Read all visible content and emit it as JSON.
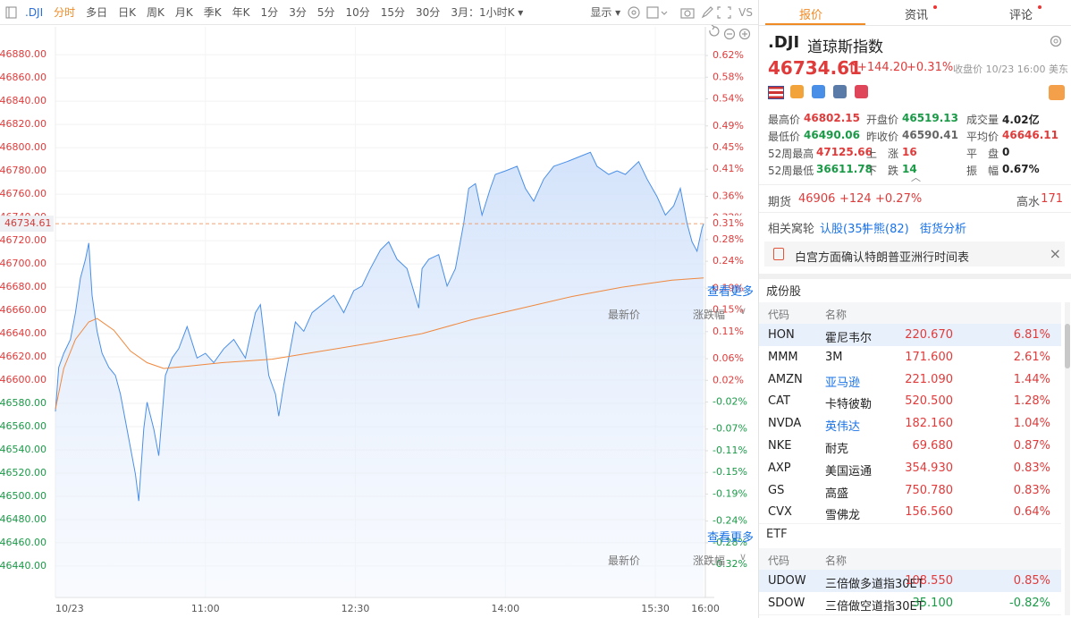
{
  "toolbar": {
    "symbol": ".DJI",
    "periods": [
      "分时",
      "多日",
      "日K",
      "周K",
      "月K",
      "季K",
      "年K",
      "1分",
      "3分",
      "5分",
      "10分",
      "15分",
      "30分"
    ],
    "range": "3月：1小时K",
    "display": "显示",
    "compare": "VS"
  },
  "chart_data": {
    "type": "line",
    "xlim": [
      "09:30",
      "16:00"
    ],
    "xticks": [
      {
        "value": "09:30",
        "label": "10/23"
      },
      "11:00",
      "12:30",
      "14:00",
      "15:30",
      "16:00"
    ],
    "ylim": [
      46413,
      46904
    ],
    "yticks": [
      {
        "value": 46880,
        "label": "46880.00"
      },
      {
        "value": 46860,
        "label": "46860.00"
      },
      {
        "value": 46840,
        "label": "46840.00"
      },
      {
        "value": 46820,
        "label": "46820.00"
      },
      {
        "value": 46800,
        "label": "46800.00"
      },
      {
        "value": 46780,
        "label": "46780.00"
      },
      {
        "value": 46760,
        "label": "46760.00"
      },
      {
        "value": 46740,
        "label": "46740.00"
      },
      {
        "value": 46720,
        "label": "46720.00"
      },
      {
        "value": 46700,
        "label": "46700.00"
      },
      {
        "value": 46680,
        "label": "46680.00"
      },
      {
        "value": 46660,
        "label": "46660.00"
      },
      {
        "value": 46640,
        "label": "46640.00"
      },
      {
        "value": 46620,
        "label": "46620.00"
      },
      {
        "value": 46600,
        "label": "46600.00"
      },
      {
        "value": 46580,
        "label": "46580.00"
      },
      {
        "value": 46560,
        "label": "46560.00"
      },
      {
        "value": 46540,
        "label": "46540.00"
      },
      {
        "value": 46520,
        "label": "46520.00"
      },
      {
        "value": 46500,
        "label": "46500.00"
      },
      {
        "value": 46480,
        "label": "46480.00"
      },
      {
        "value": 46460,
        "label": "46460.00"
      },
      {
        "value": 46440,
        "label": "46440.00"
      }
    ],
    "y2lim": [
      -0.381,
      0.673
    ],
    "y2ticks": [
      {
        "value": 0.62,
        "label": "0.62%"
      },
      {
        "value": 0.58,
        "label": "0.58%"
      },
      {
        "value": 0.54,
        "label": "0.54%"
      },
      {
        "value": 0.49,
        "label": "0.49%"
      },
      {
        "value": 0.45,
        "label": "0.45%"
      },
      {
        "value": 0.41,
        "label": "0.41%"
      },
      {
        "value": 0.36,
        "label": "0.36%"
      },
      {
        "value": 0.32,
        "label": "0.32%"
      },
      {
        "value": 0.28,
        "label": "0.28%"
      },
      {
        "value": 0.24,
        "label": "0.24%"
      },
      {
        "value": 0.19,
        "label": "0.19%"
      },
      {
        "value": 0.15,
        "label": "0.15%"
      },
      {
        "value": 0.11,
        "label": "0.11%"
      },
      {
        "value": 0.06,
        "label": "0.06%"
      },
      {
        "value": 0.02,
        "label": "0.02%"
      },
      {
        "value": -0.02,
        "label": "-0.02%"
      },
      {
        "value": -0.07,
        "label": "-0.07%"
      },
      {
        "value": -0.11,
        "label": "-0.11%"
      },
      {
        "value": -0.15,
        "label": "-0.15%"
      },
      {
        "value": -0.19,
        "label": "-0.19%"
      },
      {
        "value": -0.24,
        "label": "-0.24%"
      },
      {
        "value": -0.28,
        "label": "-0.28%"
      },
      {
        "value": -0.32,
        "label": "-0.32%"
      }
    ],
    "price_line": {
      "value": 46734.61,
      "pct_label": "0.31%"
    },
    "series": [
      {
        "color": "#4a8fe7",
        "fill": true,
        "x": [
          "09:30",
          "09:32",
          "09:35",
          "09:39",
          "09:42",
          "09:45",
          "09:48",
          "09:50",
          "09:52",
          "09:55",
          "09:58",
          "10:02",
          "10:06",
          "10:09",
          "10:12",
          "10:15",
          "10:18",
          "10:20",
          "10:23",
          "10:25",
          "10:29",
          "10:32",
          "10:36",
          "10:40",
          "10:44",
          "10:49",
          "10:55",
          "11:00",
          "11:05",
          "11:11",
          "11:17",
          "11:24",
          "11:30",
          "11:33",
          "11:38",
          "11:42",
          "11:44",
          "11:47",
          "11:51",
          "11:54",
          "11:59",
          "12:04",
          "12:10",
          "12:17",
          "12:23",
          "12:29",
          "12:34",
          "12:39",
          "12:45",
          "12:50",
          "12:55",
          "13:01",
          "13:08",
          "13:10",
          "13:14",
          "13:20",
          "13:25",
          "13:30",
          "13:35",
          "13:38",
          "13:42",
          "13:46",
          "13:51",
          "13:54",
          "14:00",
          "14:07",
          "14:12",
          "14:17",
          "14:23",
          "14:29",
          "14:37",
          "14:44",
          "14:51",
          "14:55",
          "15:02",
          "15:07",
          "15:12",
          "15:20",
          "15:25",
          "15:31",
          "15:36",
          "15:41",
          "15:45",
          "15:49",
          "15:52",
          "15:55",
          "15:58",
          "15:59"
        ],
        "values": [
          46573,
          46611,
          46623,
          46635,
          46658,
          46688,
          46704,
          46718,
          46673,
          46642,
          46623,
          46611,
          46604,
          46588,
          46565,
          46542,
          46519,
          46496,
          46558,
          46581,
          46558,
          46535,
          46604,
          46619,
          46627,
          46646,
          46619,
          46623,
          46615,
          46627,
          46635,
          46619,
          46658,
          46665,
          46604,
          46588,
          46569,
          46596,
          46627,
          46650,
          46642,
          46658,
          46665,
          46673,
          46658,
          46677,
          46681,
          46696,
          46712,
          46719,
          46704,
          46696,
          46662,
          46696,
          46704,
          46708,
          46681,
          46696,
          46735,
          46765,
          46769,
          46742,
          46765,
          46777,
          46780,
          46784,
          46765,
          46754,
          46773,
          46784,
          46788,
          46792,
          46796,
          46784,
          46777,
          46780,
          46777,
          46788,
          46773,
          46758,
          46742,
          46750,
          46765,
          46735,
          46719,
          46711,
          46731,
          46734.61
        ]
      },
      {
        "color": "#f0883e",
        "fill": false,
        "x": [
          "09:30",
          "09:35",
          "09:42",
          "09:50",
          "09:55",
          "10:05",
          "10:15",
          "10:25",
          "10:35",
          "10:50",
          "11:10",
          "11:40",
          "12:10",
          "12:40",
          "13:10",
          "13:40",
          "14:10",
          "14:40",
          "15:10",
          "15:40",
          "15:59"
        ],
        "values": [
          46575,
          46610,
          46635,
          46650,
          46653,
          46643,
          46625,
          46615,
          46610,
          46612,
          46615,
          46618,
          46625,
          46632,
          46640,
          46652,
          46662,
          46672,
          46680,
          46686,
          46688
        ]
      }
    ]
  },
  "quote": {
    "tabs": [
      "报价",
      "资讯",
      "评论"
    ],
    "symbol": ".DJI",
    "name": "道琼斯指数",
    "price": "46734.61",
    "change": "+144.20",
    "change_pct": "+0.31%",
    "close_time": "收盘价 10/23 16:00 美东",
    "stats": [
      {
        "label": "最高价",
        "value": "46802.15",
        "color": "up"
      },
      {
        "label": "开盘价",
        "value": "46519.13",
        "color": "down"
      },
      {
        "label": "成交量",
        "value": "4.02亿",
        "color": "plain"
      },
      {
        "label": "最低价",
        "value": "46490.06",
        "color": "down"
      },
      {
        "label": "昨收价",
        "value": "46590.41",
        "color": "gray"
      },
      {
        "label": "平均价",
        "value": "46646.11",
        "color": "up"
      },
      {
        "label": "52周最高",
        "value": "47125.66",
        "color": "up"
      },
      {
        "label": "上　涨",
        "value": "16",
        "color": "up"
      },
      {
        "label": "平　盘",
        "value": "0",
        "color": "plain"
      },
      {
        "label": "52周最低",
        "value": "36611.78",
        "color": "down"
      },
      {
        "label": "下　跌",
        "value": "14",
        "color": "down"
      },
      {
        "label": "振　幅",
        "value": "0.67%",
        "color": "plain"
      }
    ],
    "futures": {
      "label": "期货",
      "price": "46906",
      "change": "+124",
      "change_pct": "+0.27%",
      "premium_label": "高水",
      "premium": "171"
    },
    "warrants": {
      "label": "相关窝轮",
      "links": [
        "认股(35)",
        "牛熊(82)",
        "街货分析"
      ]
    },
    "news": "白宫方面确认特朗普亚洲行时间表"
  },
  "constituents": {
    "title": "成份股",
    "more": "查看更多",
    "headers": [
      "代码",
      "名称",
      "最新价",
      "涨跌幅"
    ],
    "rows": [
      {
        "code": "HON",
        "name": "霍尼韦尔",
        "price": "220.670",
        "pct": "6.81%",
        "link": false
      },
      {
        "code": "MMM",
        "name": "3M",
        "price": "171.600",
        "pct": "2.61%",
        "link": false
      },
      {
        "code": "AMZN",
        "name": "亚马逊",
        "price": "221.090",
        "pct": "1.44%",
        "link": true
      },
      {
        "code": "CAT",
        "name": "卡特彼勒",
        "price": "520.500",
        "pct": "1.28%",
        "link": false
      },
      {
        "code": "NVDA",
        "name": "英伟达",
        "price": "182.160",
        "pct": "1.04%",
        "link": true
      },
      {
        "code": "NKE",
        "name": "耐克",
        "price": "69.680",
        "pct": "0.87%",
        "link": false
      },
      {
        "code": "AXP",
        "name": "美国运通",
        "price": "354.930",
        "pct": "0.83%",
        "link": false
      },
      {
        "code": "GS",
        "name": "高盛",
        "price": "750.780",
        "pct": "0.83%",
        "link": false
      },
      {
        "code": "CVX",
        "name": "雪佛龙",
        "price": "156.560",
        "pct": "0.64%",
        "link": false
      }
    ]
  },
  "etf": {
    "title": "ETF",
    "more": "查看更多",
    "headers": [
      "代码",
      "名称",
      "最新价",
      "涨跌幅"
    ],
    "rows": [
      {
        "code": "UDOW",
        "name": "三倍做多道指30ET",
        "price": "108.550",
        "pct": "0.85%",
        "link": false
      },
      {
        "code": "SDOW",
        "name": "三倍做空道指30ET",
        "price": "35.100",
        "pct": "-0.82%",
        "link": false
      }
    ]
  }
}
